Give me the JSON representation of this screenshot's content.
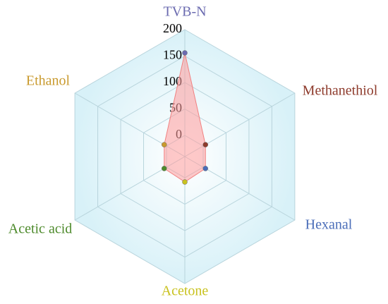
{
  "chart_data": {
    "type": "radar",
    "categories": [
      "TVB-N",
      "Methanethiol",
      "Hexanal",
      "Acetone",
      "Acetic acid",
      "Ethanol"
    ],
    "values": [
      156,
      5,
      5,
      8,
      5,
      5
    ],
    "category_colors": [
      "#6b6bb0",
      "#8e3b2c",
      "#4a6db8",
      "#c9c21f",
      "#4d8a2b",
      "#c99a2e"
    ],
    "fill": "#ff9a9a",
    "ylim": [
      -40,
      200
    ],
    "yticks": [
      0,
      50,
      100,
      150,
      200
    ],
    "grid": true
  }
}
